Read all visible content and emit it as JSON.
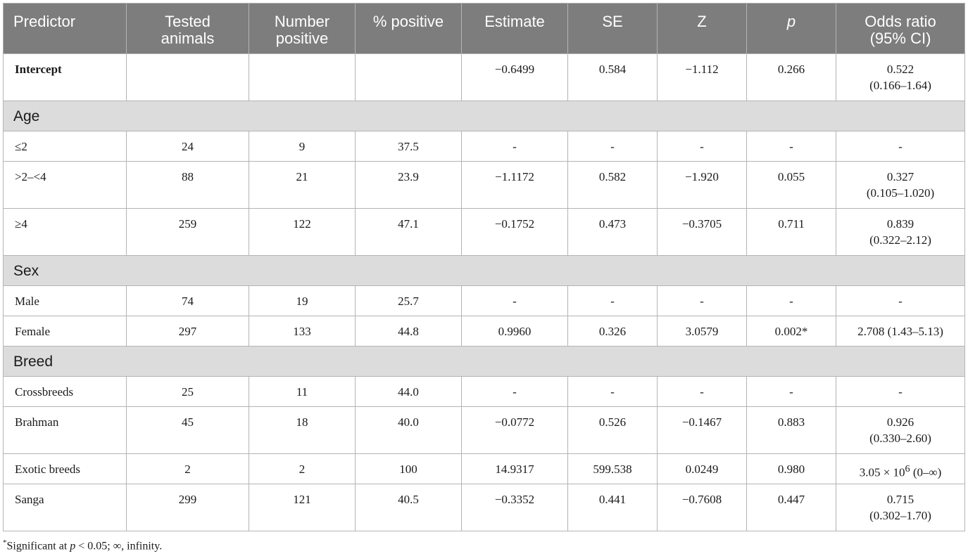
{
  "headers": [
    {
      "line1": "Predictor",
      "line2": ""
    },
    {
      "line1": "Tested",
      "line2": "animals"
    },
    {
      "line1": "Number",
      "line2": "positive"
    },
    {
      "line1": "% positive",
      "line2": ""
    },
    {
      "line1": "Estimate",
      "line2": ""
    },
    {
      "line1": "SE",
      "line2": ""
    },
    {
      "line1": "Z",
      "line2": ""
    },
    {
      "line1": "p",
      "line2": ""
    },
    {
      "line1": "Odds ratio",
      "line2": "(95% CI)"
    }
  ],
  "intercept": {
    "label": "Intercept",
    "tested": "",
    "positive": "",
    "pct": "",
    "estimate": "−0.6499",
    "se": "0.584",
    "z": "−1.112",
    "p": "0.266",
    "or_line1": "0.522",
    "or_line2": "(0.166–1.64)"
  },
  "sections": {
    "age": {
      "title": "Age",
      "rows": [
        {
          "label": "≤2",
          "tested": "24",
          "positive": "9",
          "pct": "37.5",
          "estimate": "-",
          "se": "-",
          "z": "-",
          "p": "-",
          "or_line1": "-",
          "or_line2": ""
        },
        {
          "label": ">2–<4",
          "tested": "88",
          "positive": "21",
          "pct": "23.9",
          "estimate": "−1.1172",
          "se": "0.582",
          "z": "−1.920",
          "p": "0.055",
          "or_line1": "0.327",
          "or_line2": "(0.105–1.020)"
        },
        {
          "label": "≥4",
          "tested": "259",
          "positive": "122",
          "pct": "47.1",
          "estimate": "−0.1752",
          "se": "0.473",
          "z": "−0.3705",
          "p": "0.711",
          "or_line1": "0.839",
          "or_line2": "(0.322–2.12)"
        }
      ]
    },
    "sex": {
      "title": "Sex",
      "rows": [
        {
          "label": "Male",
          "tested": "74",
          "positive": "19",
          "pct": "25.7",
          "estimate": "-",
          "se": "-",
          "z": "-",
          "p": "-",
          "or_line1": "-",
          "or_line2": ""
        },
        {
          "label": "Female",
          "tested": "297",
          "positive": "133",
          "pct": "44.8",
          "estimate": "0.9960",
          "se": "0.326",
          "z": "3.0579",
          "p": "0.002*",
          "or_line1": "2.708 (1.43–5.13)",
          "or_line2": ""
        }
      ]
    },
    "breed": {
      "title": "Breed",
      "rows": [
        {
          "label": "Crossbreeds",
          "tested": "25",
          "positive": "11",
          "pct": "44.0",
          "estimate": "-",
          "se": "-",
          "z": "-",
          "p": "-",
          "or_line1": "-",
          "or_line2": ""
        },
        {
          "label": "Brahman",
          "tested": "45",
          "positive": "18",
          "pct": "40.0",
          "estimate": "−0.0772",
          "se": "0.526",
          "z": "−0.1467",
          "p": "0.883",
          "or_line1": "0.926",
          "or_line2": "(0.330–2.60)"
        },
        {
          "label": "Exotic breeds",
          "tested": "2",
          "positive": "2",
          "pct": "100",
          "estimate": "14.9317",
          "se": "599.538",
          "z": "0.0249",
          "p": "0.980",
          "or_line1": "3.05 × 10",
          "or_exp": "6",
          "or_tail": " (0–∞)",
          "or_line2": ""
        },
        {
          "label": "Sanga",
          "tested": "299",
          "positive": "121",
          "pct": "40.5",
          "estimate": "−0.3352",
          "se": "0.441",
          "z": "−0.7608",
          "p": "0.447",
          "or_line1": "0.715",
          "or_line2": "(0.302–1.70)"
        }
      ]
    }
  },
  "footnote": {
    "mark": "*",
    "text1": "Significant at ",
    "p": "p",
    "text2": " < 0.05; ∞, infinity."
  }
}
